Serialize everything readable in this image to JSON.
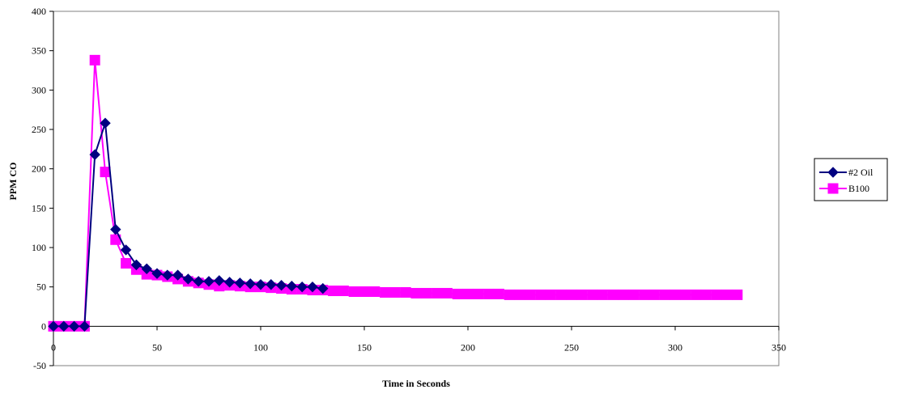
{
  "chart_data": {
    "type": "line",
    "title": "",
    "xlabel": "Time in Seconds",
    "ylabel": "PPM CO",
    "xlim": [
      0,
      350
    ],
    "ylim": [
      -50,
      400
    ],
    "x_ticks": [
      "0",
      "50",
      "100",
      "150",
      "200",
      "250",
      "300",
      "350"
    ],
    "y_ticks": [
      "-50",
      "0",
      "50",
      "100",
      "150",
      "200",
      "250",
      "300",
      "350",
      "400"
    ],
    "grid": false,
    "legend_position": "right",
    "series": [
      {
        "name": "#2 Oil",
        "color": "#000080",
        "marker": "diamond",
        "x": [
          0,
          5,
          10,
          15,
          20,
          25,
          30,
          35,
          40,
          45,
          50,
          55,
          60,
          65,
          70,
          75,
          80,
          85,
          90,
          95,
          100,
          105,
          110,
          115,
          120,
          125,
          130
        ],
        "y": [
          0,
          0,
          0,
          0,
          218,
          258,
          123,
          97,
          78,
          73,
          67,
          65,
          65,
          60,
          57,
          57,
          58,
          56,
          55,
          54,
          53,
          53,
          52,
          51,
          50,
          50,
          48
        ]
      },
      {
        "name": "B100",
        "color": "#ff00ff",
        "marker": "square",
        "x": [
          0,
          5,
          10,
          15,
          20,
          25,
          30,
          35,
          40,
          45,
          50,
          55,
          60,
          65,
          70,
          75,
          80,
          85,
          90,
          95,
          100,
          105,
          110,
          115,
          120,
          125,
          130,
          135,
          140,
          145,
          150,
          155,
          160,
          165,
          170,
          175,
          180,
          185,
          190,
          195,
          200,
          205,
          210,
          215,
          220,
          225,
          230,
          235,
          240,
          245,
          250,
          255,
          260,
          265,
          270,
          275,
          280,
          285,
          290,
          295,
          300,
          305,
          310,
          315,
          320,
          325,
          330
        ],
        "y": [
          0,
          0,
          0,
          0,
          338,
          196,
          110,
          80,
          72,
          66,
          65,
          63,
          60,
          57,
          55,
          53,
          51,
          52,
          51,
          50,
          50,
          49,
          48,
          47,
          47,
          46,
          46,
          45,
          45,
          44,
          44,
          44,
          43,
          43,
          43,
          42,
          42,
          42,
          42,
          41,
          41,
          41,
          41,
          41,
          40,
          40,
          40,
          40,
          40,
          40,
          40,
          40,
          40,
          40,
          40,
          40,
          40,
          40,
          40,
          40,
          40,
          40,
          40,
          40,
          40,
          40,
          40
        ]
      }
    ]
  }
}
